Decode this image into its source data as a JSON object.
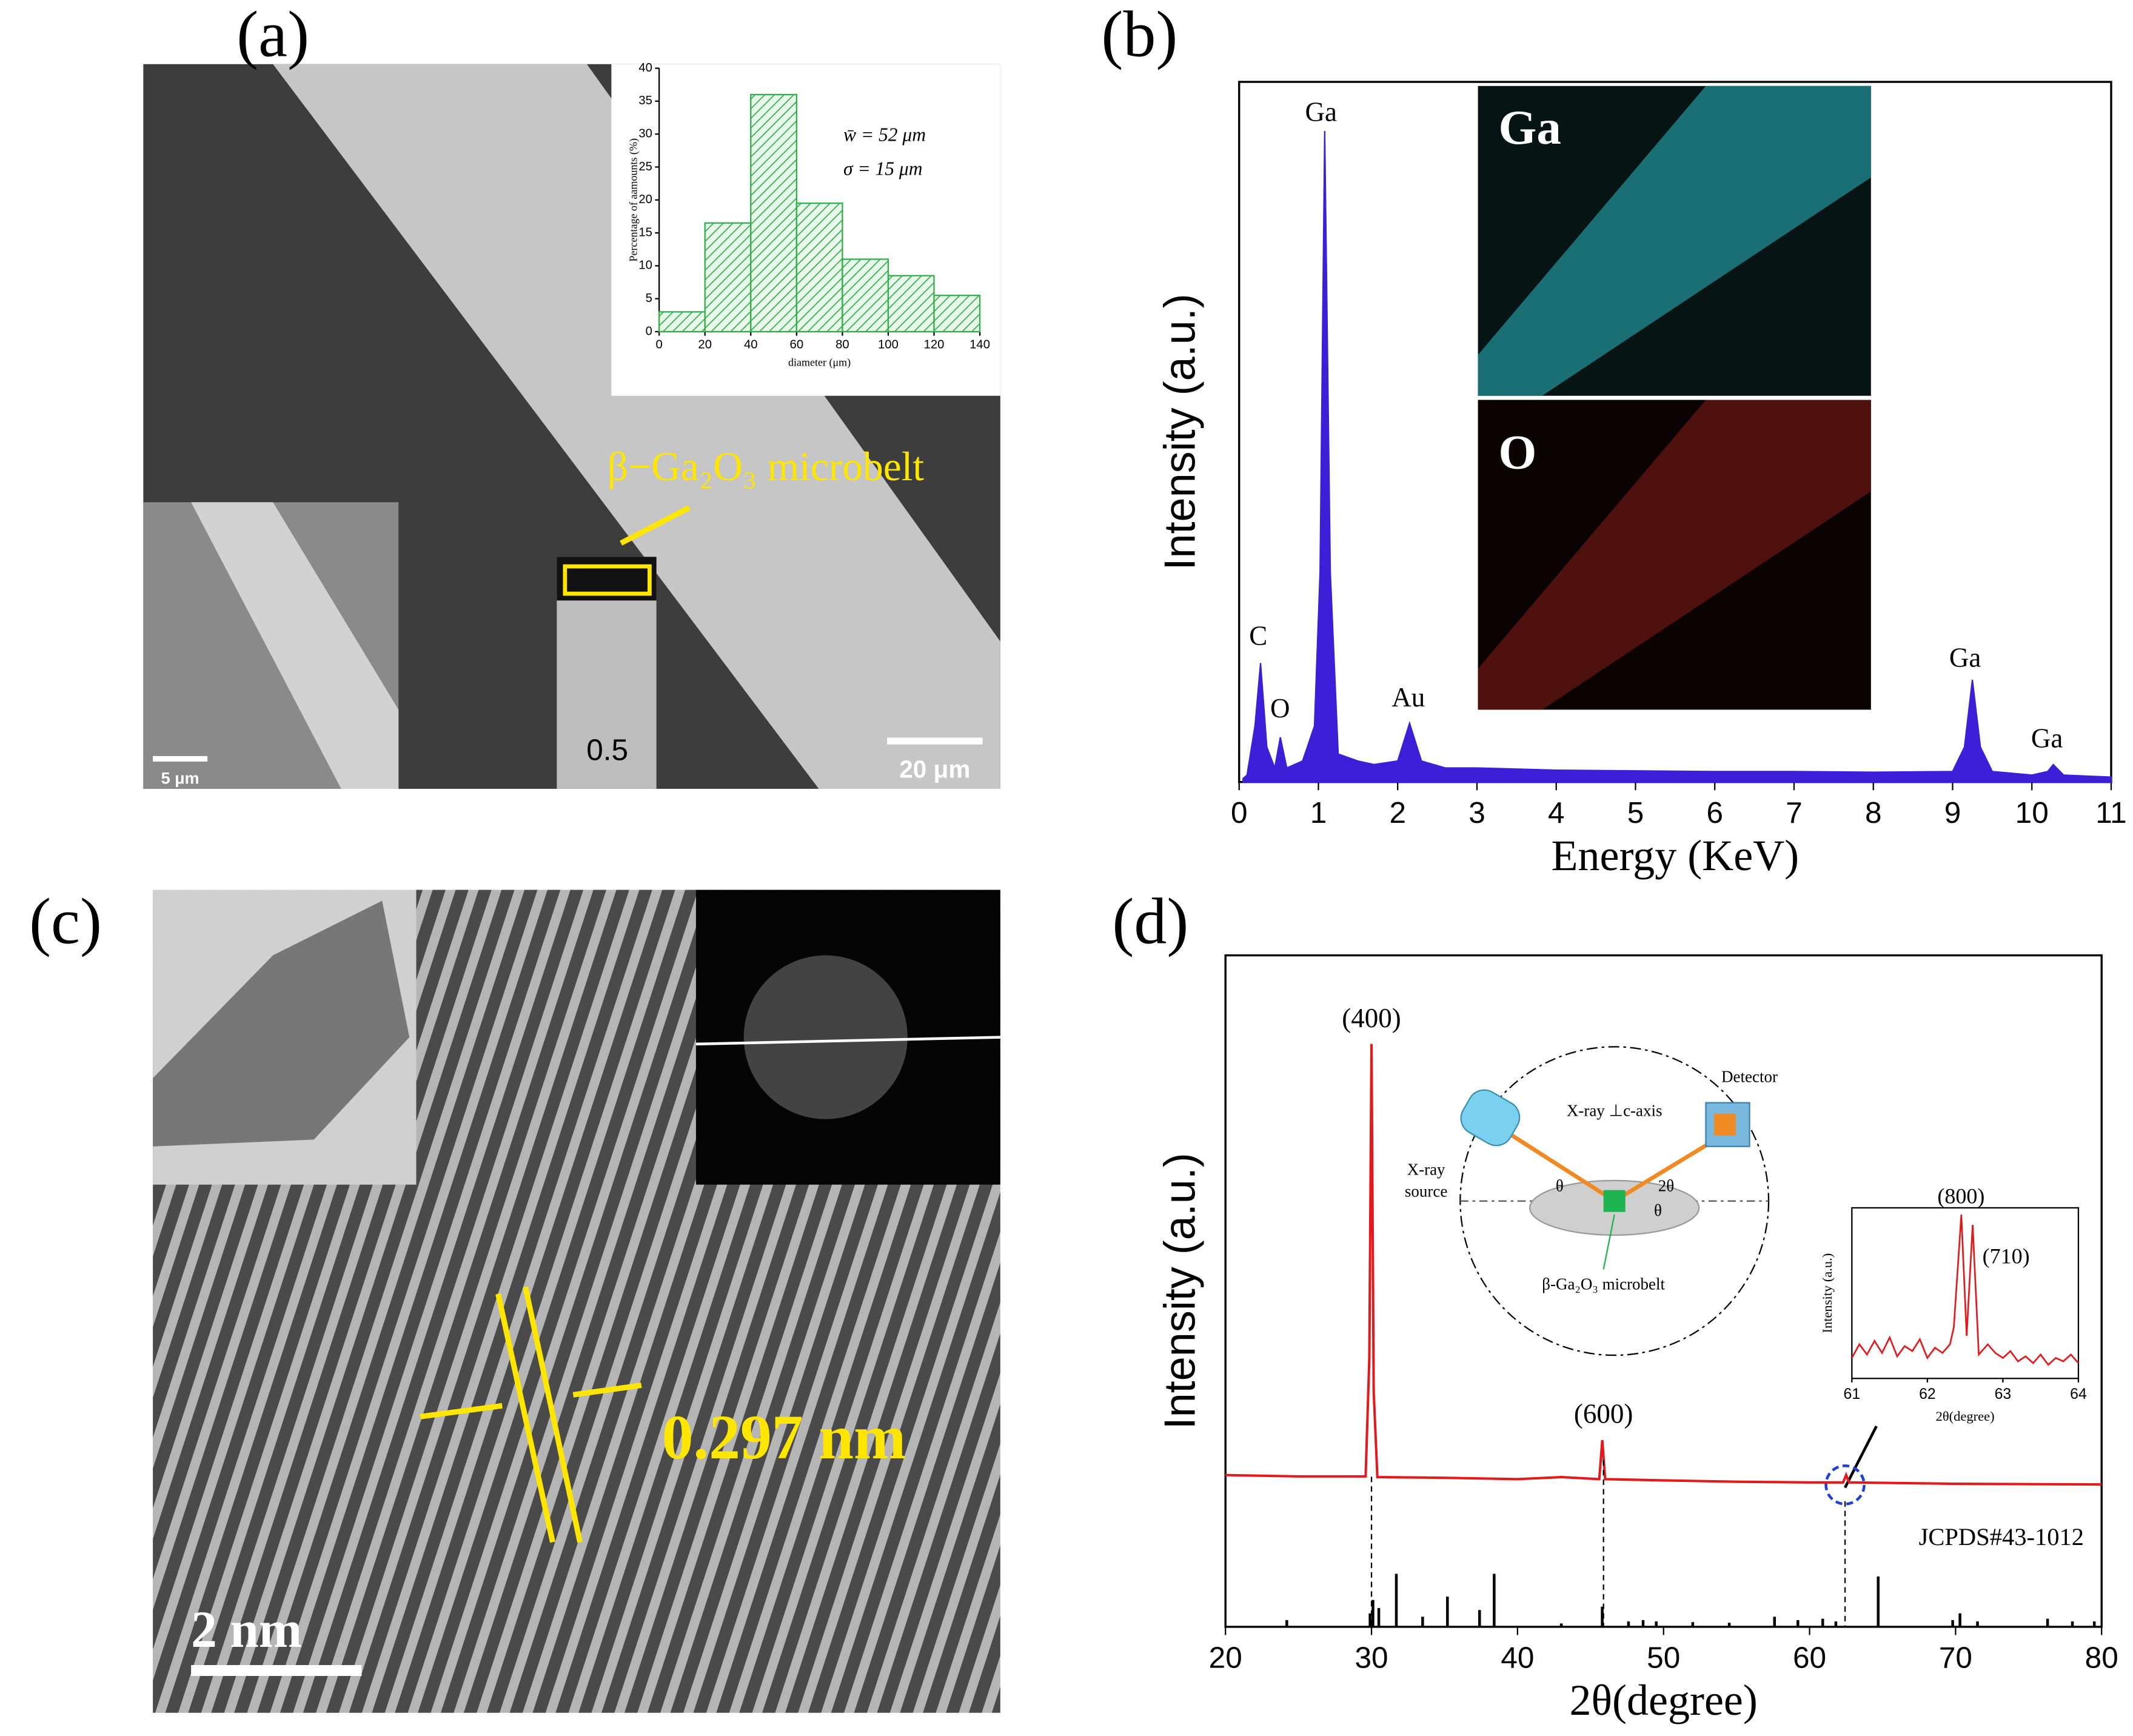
{
  "panels": {
    "a": {
      "label": "(a)",
      "material": "β−Ga₂O₃ microbelt",
      "scale_main": "20 μm",
      "scale_inset": "5 μm",
      "ruler": "0.5"
    },
    "b": {
      "label": "(b)",
      "map_ga": "Ga",
      "map_o": "O"
    },
    "c": {
      "label": "(c)",
      "spacing": "0.297 nm",
      "scale": "2 nm"
    },
    "d": {
      "label": "(d)",
      "diagram": {
        "beam": "X-ray ⊥c-axis",
        "detector": "Detector",
        "source_1": "X-ray",
        "source_2": "source",
        "theta_in": "θ",
        "two_theta": "2θ",
        "theta_out": "θ",
        "sample": "β-Ga₂O₃ microbelt"
      }
    }
  },
  "chart_data": [
    {
      "type": "histogram",
      "x_label": "diameter (μm)",
      "y_label": "Percentage of aamounts (%)",
      "bins": [
        0,
        20,
        40,
        60,
        80,
        100,
        120,
        140
      ],
      "values": [
        3,
        16.5,
        36,
        19.5,
        11,
        8.5,
        5.5
      ],
      "color": "#2fae4a",
      "xlim": [
        0,
        140
      ],
      "ylim": [
        0,
        40
      ],
      "xticks": [
        0,
        20,
        40,
        60,
        80,
        100,
        120,
        140
      ],
      "yticks": [
        0,
        5,
        10,
        15,
        20,
        25,
        30,
        35,
        40
      ],
      "annotations": [
        "w̄ = 52 μm",
        "σ = 15 μm"
      ]
    },
    {
      "type": "area",
      "x_label": "Energy (KeV)",
      "y_label": "Intensity (a.u.)",
      "color": "#3d1fd8",
      "x": [
        0.05,
        0.1,
        0.2,
        0.27,
        0.35,
        0.45,
        0.52,
        0.6,
        0.8,
        0.95,
        1.02,
        1.08,
        1.15,
        1.25,
        1.5,
        1.7,
        2.0,
        2.15,
        2.3,
        2.6,
        3,
        4,
        5,
        6,
        7,
        8,
        9,
        9.15,
        9.25,
        9.35,
        9.5,
        10,
        10.2,
        10.27,
        10.4,
        11
      ],
      "values": [
        0.5,
        1,
        8,
        17,
        5,
        2,
        6.4,
        2,
        3,
        8,
        30,
        93,
        30,
        4,
        3,
        2.5,
        3,
        8.4,
        3,
        2,
        2,
        1.7,
        1.6,
        1.5,
        1.5,
        1.4,
        1.5,
        5,
        14.6,
        5,
        1.5,
        1,
        1.5,
        2.5,
        1,
        0.7
      ],
      "xlim": [
        0,
        11
      ],
      "ylim": [
        0,
        100
      ],
      "xticks": [
        0,
        1,
        2,
        3,
        4,
        5,
        6,
        7,
        8,
        9,
        10,
        11
      ],
      "peak_labels": [
        "C",
        "O",
        "Ga",
        "Au",
        "Ga",
        "Ga"
      ]
    },
    {
      "type": "line",
      "x_label": "2θ(degree)",
      "y_label": "Intensity (a.u.)",
      "color": "#e31a1c",
      "x": [
        20,
        25,
        29.6,
        29.85,
        30.0,
        30.15,
        30.4,
        35,
        40,
        43,
        45.6,
        45.8,
        46.0,
        50,
        55,
        60,
        62.3,
        62.5,
        62.7,
        70,
        80
      ],
      "values": [
        22.6,
        22.4,
        22.4,
        40,
        86.8,
        35,
        22.3,
        22.2,
        22.0,
        22.3,
        22,
        27.8,
        22,
        21.8,
        21.6,
        21.5,
        21.5,
        22.6,
        21.5,
        21.3,
        21.2
      ],
      "xlim": [
        20,
        80
      ],
      "ylim": [
        0,
        100
      ],
      "xticks": [
        20,
        30,
        40,
        50,
        60,
        70,
        80
      ],
      "peak_labels": [
        "(400)",
        "(600)"
      ],
      "reference": {
        "label": "JCPDS#43-1012",
        "color": "#000000",
        "x": [
          24.2,
          29.9,
          30.1,
          30.5,
          31.7,
          33.5,
          35.2,
          37.4,
          38.4,
          43.0,
          45.8,
          47.6,
          48.6,
          49.5,
          52,
          54.5,
          57.6,
          59.2,
          60.9,
          61.8,
          64.7,
          69.8,
          70.3,
          71.5,
          76.3,
          78,
          79.5
        ],
        "values": [
          1,
          2,
          4,
          2.8,
          7.9,
          1.5,
          4.5,
          2.5,
          7.9,
          0.5,
          3,
          0.8,
          1,
          0.8,
          0.7,
          0.6,
          1.5,
          1,
          1.2,
          0.8,
          7.5,
          1,
          2,
          0.8,
          1.2,
          0.8,
          0.8
        ]
      }
    },
    {
      "type": "line",
      "x_label": "2θ(degree)",
      "y_label": "Intensity (a.u.)",
      "color": "#e31a1c",
      "x": [
        61,
        61.1,
        61.2,
        61.3,
        61.4,
        61.5,
        61.6,
        61.7,
        61.8,
        61.9,
        62,
        62.1,
        62.2,
        62.3,
        62.35,
        62.45,
        62.52,
        62.6,
        62.68,
        62.8,
        62.9,
        63,
        63.1,
        63.2,
        63.3,
        63.4,
        63.5,
        63.6,
        63.7,
        63.8,
        63.9,
        64
      ],
      "values": [
        12,
        20,
        14,
        22,
        15,
        24,
        13,
        19,
        16,
        23,
        12,
        18,
        15,
        20,
        30,
        96,
        25,
        90,
        14,
        20,
        15,
        12,
        16,
        10,
        13,
        9,
        14,
        8,
        12,
        10,
        14,
        9
      ],
      "xlim": [
        61,
        64
      ],
      "ylim": [
        0,
        100
      ],
      "xticks": [
        61,
        62,
        63,
        64
      ],
      "peak_labels": [
        "(800)",
        "(710)"
      ]
    }
  ]
}
